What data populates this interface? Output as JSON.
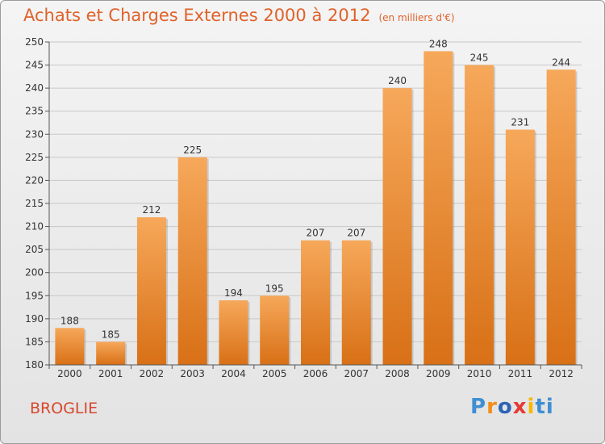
{
  "header": {
    "title": "Achats et Charges Externes 2000 à 2012",
    "subtitle": "(en milliers d'€)"
  },
  "footer": {
    "commune": "BROGLIE",
    "logo": [
      "P",
      "r",
      "o",
      "x",
      "i",
      "ti"
    ]
  },
  "colors": {
    "bar_top": "#f6a85a",
    "bar_bottom": "#d87016",
    "title": "#e0622a",
    "commune": "#d6472c"
  },
  "chart_data": {
    "type": "bar",
    "title": "Achats et Charges Externes 2000 à 2012",
    "subtitle": "(en milliers d'€)",
    "categories": [
      "2000",
      "2001",
      "2002",
      "2003",
      "2004",
      "2005",
      "2006",
      "2007",
      "2008",
      "2009",
      "2010",
      "2011",
      "2012"
    ],
    "values": [
      188,
      185,
      212,
      225,
      194,
      195,
      207,
      207,
      240,
      248,
      245,
      231,
      244
    ],
    "ylim": [
      180,
      250
    ],
    "yticks": [
      180,
      185,
      190,
      195,
      200,
      205,
      210,
      215,
      220,
      225,
      230,
      235,
      240,
      245,
      250
    ],
    "grid": true,
    "data_labels": true
  }
}
